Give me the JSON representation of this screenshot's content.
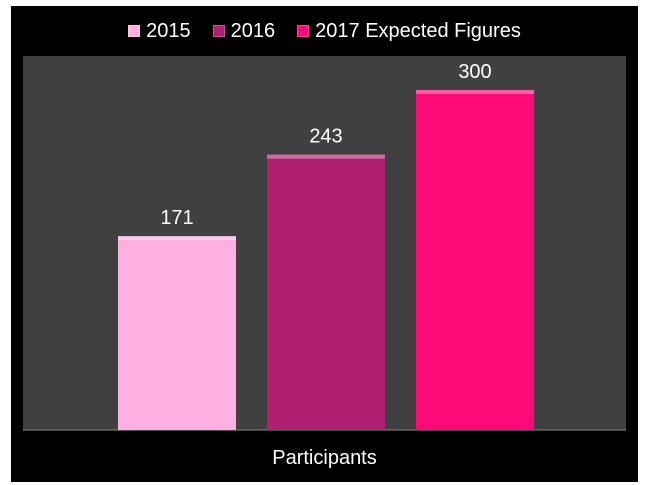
{
  "chart_data": {
    "type": "bar",
    "categories": [
      "Participants"
    ],
    "series": [
      {
        "name": "2015",
        "values": [
          171
        ],
        "color": "#ffb0e0"
      },
      {
        "name": "2016",
        "values": [
          243
        ],
        "color": "#b02070"
      },
      {
        "name": "2017 Expected Figures",
        "values": [
          300
        ],
        "color": "#ff0a78"
      }
    ],
    "data_labels": [
      "171",
      "243",
      "300"
    ],
    "xlabel": "Participants",
    "ylim": [
      0,
      330
    ],
    "grid": false,
    "legend_position": "top",
    "background_color": "#000000",
    "plot_area_color": "#404040"
  }
}
